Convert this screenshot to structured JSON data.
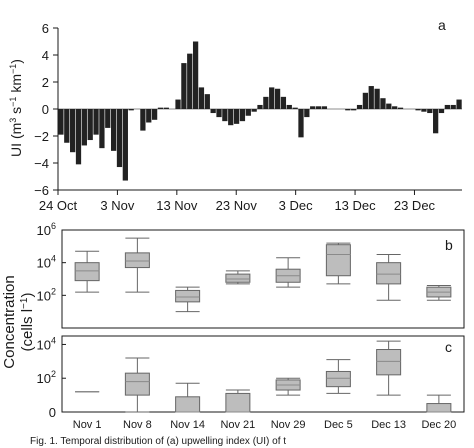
{
  "chart_data": [
    {
      "type": "bar",
      "panel_label": "a",
      "ylabel": "UI (m³ s⁻¹ km⁻¹)",
      "ylabel_parts": {
        "base": "UI (m",
        "exp1": "3",
        "mid1": " s",
        "exp2": "−1",
        "mid2": " km",
        "exp3": "−1",
        "end": ")"
      },
      "ylim": [
        -6,
        6
      ],
      "yticks": [
        "6",
        "4",
        "2",
        "0",
        "−2",
        "−4",
        "−6"
      ],
      "ytick_values": [
        6,
        4,
        2,
        0,
        -2,
        -4,
        -6
      ],
      "xtick_labels": [
        "24 Oct",
        "3 Nov",
        "13 Nov",
        "23 Nov",
        "3 Dec",
        "13 Dec",
        "23 Dec"
      ],
      "xtick_days": [
        0,
        10,
        20,
        30,
        40,
        50,
        60
      ],
      "x_range_days": [
        0,
        68
      ],
      "values": [
        -1.9,
        -2.5,
        -3.2,
        -4.1,
        -2.7,
        -2.3,
        -1.9,
        -2.9,
        -1.4,
        -3.1,
        -4.3,
        -5.3,
        -0.1,
        0.0,
        -1.6,
        -1.0,
        -0.8,
        0.1,
        0.1,
        0.0,
        0.7,
        3.4,
        4.1,
        5.0,
        1.6,
        1.1,
        -0.3,
        -0.6,
        -0.9,
        -1.2,
        -1.1,
        -0.9,
        -0.5,
        -0.2,
        0.3,
        0.9,
        1.6,
        1.5,
        0.9,
        0.3,
        0.1,
        -2.1,
        -0.6,
        0.2,
        0.2,
        0.2,
        0.0,
        0.0,
        0.0,
        -0.1,
        -0.1,
        0.3,
        1.2,
        1.7,
        1.5,
        0.8,
        0.4,
        0.2,
        0.1,
        0.0,
        0.0,
        -0.1,
        -0.2,
        -0.3,
        -1.8,
        -0.3,
        0.3,
        0.3,
        0.7
      ]
    },
    {
      "type": "boxplot",
      "panel_label": "b",
      "scale": "log",
      "ylim": [
        0,
        6
      ],
      "yticks": [
        {
          "base": "10",
          "exp": "6",
          "value": 6
        },
        {
          "base": "10",
          "exp": "4",
          "value": 4
        },
        {
          "base": "10",
          "exp": "2",
          "value": 2
        }
      ],
      "categories": [
        "Nov 1",
        "Nov 8",
        "Nov 14",
        "Nov 21",
        "Nov 29",
        "Dec 5",
        "Dec 13",
        "Dec 20"
      ],
      "boxes": [
        {
          "min": 2.2,
          "q1": 2.9,
          "median": 3.5,
          "q3": 4.0,
          "max": 4.7
        },
        {
          "min": 2.2,
          "q1": 3.7,
          "median": 4.1,
          "q3": 4.6,
          "max": 5.5
        },
        {
          "min": 1.0,
          "q1": 1.6,
          "median": 1.9,
          "q3": 2.3,
          "max": 2.5
        },
        {
          "min": 2.7,
          "q1": 2.8,
          "median": 3.0,
          "q3": 3.3,
          "max": 3.5
        },
        {
          "min": 2.5,
          "q1": 2.8,
          "median": 3.2,
          "q3": 3.6,
          "max": 4.3
        },
        {
          "min": 2.7,
          "q1": 3.2,
          "median": 4.5,
          "q3": 5.1,
          "max": 5.2
        },
        {
          "min": 1.7,
          "q1": 2.7,
          "median": 3.3,
          "q3": 4.0,
          "max": 4.5
        },
        {
          "min": 1.7,
          "q1": 1.9,
          "median": 2.2,
          "q3": 2.5,
          "max": 2.6
        }
      ]
    },
    {
      "type": "boxplot",
      "panel_label": "c",
      "scale": "log",
      "ylim": [
        0,
        4.5
      ],
      "yticks": [
        {
          "base": "10",
          "exp": "4",
          "value": 4
        },
        {
          "base": "10",
          "exp": "2",
          "value": 2
        },
        {
          "base": "0",
          "exp": "",
          "value": 0
        }
      ],
      "categories": [
        "Nov 1",
        "Nov 8",
        "Nov 14",
        "Nov 21",
        "Nov 29",
        "Dec 5",
        "Dec 13",
        "Dec 20"
      ],
      "boxes": [
        {
          "min": 1.2,
          "q1": 1.2,
          "median": 1.2,
          "q3": 1.2,
          "max": 1.2
        },
        {
          "min": 0.0,
          "q1": 1.0,
          "median": 1.8,
          "q3": 2.3,
          "max": 3.2
        },
        {
          "min": 0.0,
          "q1": 0.0,
          "median": 0.0,
          "q3": 0.9,
          "max": 1.7
        },
        {
          "min": 0.0,
          "q1": 0.0,
          "median": 0.0,
          "q3": 1.1,
          "max": 1.3
        },
        {
          "min": 1.0,
          "q1": 1.3,
          "median": 1.6,
          "q3": 1.9,
          "max": 2.0
        },
        {
          "min": 1.1,
          "q1": 1.5,
          "median": 2.0,
          "q3": 2.4,
          "max": 3.1
        },
        {
          "min": 1.0,
          "q1": 2.2,
          "median": 3.0,
          "q3": 3.7,
          "max": 4.2
        },
        {
          "min": 0.0,
          "q1": 0.0,
          "median": 0.0,
          "q3": 0.5,
          "max": 1.0
        }
      ]
    }
  ],
  "shared": {
    "conc_label_line1": "Concentration",
    "conc_label_line2_base": "(cells l",
    "conc_label_line2_exp": "−1",
    "conc_label_line2_end": ")"
  },
  "caption_fragment": "Fig. 1. Temporal distribution of (a) upwelling index (UI) of t",
  "colors": {
    "bar_fill": "#222222",
    "box_fill": "#bdbdbd",
    "box_stroke": "#666666",
    "axis": "#1a1a1a"
  }
}
